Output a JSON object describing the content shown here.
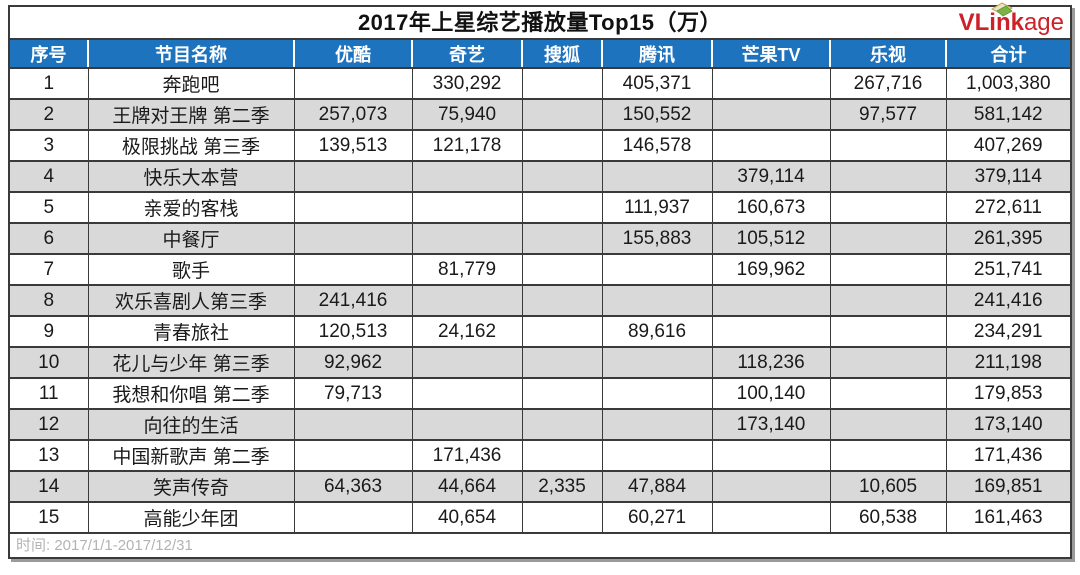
{
  "chart_data": {
    "type": "table",
    "title": "2017年上星综艺播放量Top15（万）",
    "columns": [
      "序号",
      "节目名称",
      "优酷",
      "奇艺",
      "搜狐",
      "腾讯",
      "芒果TV",
      "乐视",
      "合计"
    ],
    "rows": [
      [
        "1",
        "奔跑吧",
        "",
        "330,292",
        "",
        "405,371",
        "",
        "267,716",
        "1,003,380"
      ],
      [
        "2",
        "王牌对王牌 第二季",
        "257,073",
        "75,940",
        "",
        "150,552",
        "",
        "97,577",
        "581,142"
      ],
      [
        "3",
        "极限挑战 第三季",
        "139,513",
        "121,178",
        "",
        "146,578",
        "",
        "",
        "407,269"
      ],
      [
        "4",
        "快乐大本营",
        "",
        "",
        "",
        "",
        "379,114",
        "",
        "379,114"
      ],
      [
        "5",
        "亲爱的客栈",
        "",
        "",
        "",
        "111,937",
        "160,673",
        "",
        "272,611"
      ],
      [
        "6",
        "中餐厅",
        "",
        "",
        "",
        "155,883",
        "105,512",
        "",
        "261,395"
      ],
      [
        "7",
        "歌手",
        "",
        "81,779",
        "",
        "",
        "169,962",
        "",
        "251,741"
      ],
      [
        "8",
        "欢乐喜剧人第三季",
        "241,416",
        "",
        "",
        "",
        "",
        "",
        "241,416"
      ],
      [
        "9",
        "青春旅社",
        "120,513",
        "24,162",
        "",
        "89,616",
        "",
        "",
        "234,291"
      ],
      [
        "10",
        "花儿与少年 第三季",
        "92,962",
        "",
        "",
        "",
        "118,236",
        "",
        "211,198"
      ],
      [
        "11",
        "我想和你唱 第二季",
        "79,713",
        "",
        "",
        "",
        "100,140",
        "",
        "179,853"
      ],
      [
        "12",
        "向往的生活",
        "",
        "",
        "",
        "",
        "173,140",
        "",
        "173,140"
      ],
      [
        "13",
        "中国新歌声 第二季",
        "",
        "171,436",
        "",
        "",
        "",
        "",
        "171,436"
      ],
      [
        "14",
        "笑声传奇",
        "64,363",
        "44,664",
        "2,335",
        "47,884",
        "",
        "10,605",
        "169,851"
      ],
      [
        "15",
        "高能少年团",
        "",
        "40,654",
        "",
        "60,271",
        "",
        "60,538",
        "161,463"
      ]
    ],
    "footnote": "时间: 2017/1/1-2017/12/31"
  },
  "logo": {
    "text_bold": "VLink",
    "text_regular": "age"
  },
  "colors": {
    "header_bg": "#1e73be",
    "row_alt_bg": "#d9d9d9",
    "grid_border": "#3a3a3a",
    "logo_red": "#cc2128",
    "footer_text": "#b3b3b3"
  }
}
